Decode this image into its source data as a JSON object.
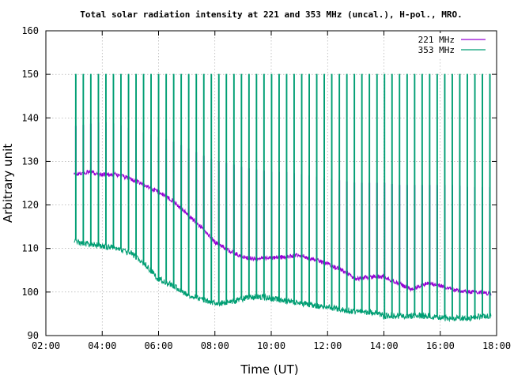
{
  "chart_data": {
    "type": "line",
    "title": "Total solar radiation intensity at 221 and 353 MHz (uncal.), H-pol., MRO.",
    "xlabel": "Time (UT)",
    "ylabel": "Arbitrary unit",
    "xlim": [
      2,
      18
    ],
    "ylim": [
      90,
      160
    ],
    "x_ticks": [
      2,
      4,
      6,
      8,
      10,
      12,
      14,
      16,
      18
    ],
    "x_tick_labels": [
      "02:00",
      "04:00",
      "06:00",
      "08:00",
      "10:00",
      "12:00",
      "14:00",
      "16:00",
      "18:00"
    ],
    "y_ticks": [
      90,
      100,
      110,
      120,
      130,
      140,
      150,
      160
    ],
    "y_tick_labels": [
      "90",
      "100",
      "110",
      "120",
      "130",
      "140",
      "150",
      "160"
    ],
    "grid": true,
    "legend_position": "top-right",
    "x_units": "hours UT",
    "series": [
      {
        "name": "221 MHz",
        "color": "#9400d3",
        "baseline_x": [
          3.0,
          3.5,
          4.0,
          4.5,
          5.0,
          5.5,
          6.0,
          6.5,
          7.0,
          7.5,
          8.0,
          8.5,
          9.0,
          9.5,
          10.0,
          10.5,
          11.0,
          11.5,
          12.0,
          12.5,
          13.0,
          13.5,
          14.0,
          14.5,
          15.0,
          15.5,
          16.0,
          16.5,
          17.0,
          17.5,
          17.8
        ],
        "baseline_y": [
          127,
          127.5,
          127,
          127,
          126,
          124.5,
          123,
          121,
          118,
          115,
          111.5,
          109.5,
          108,
          107.5,
          108,
          108,
          108.5,
          107.5,
          106.5,
          105,
          103,
          103.5,
          103.5,
          102,
          100.5,
          102,
          101.5,
          100.5,
          100,
          100,
          99.5
        ],
        "calibration_spike_top": [
          138,
          138.5,
          139,
          138.5,
          137.5,
          136.5,
          135.5,
          134.5,
          133,
          131.5,
          130,
          129.5,
          128.5,
          128,
          127.5,
          127.5,
          127,
          126.5,
          126,
          125.5,
          125,
          125,
          125,
          124.5,
          124.5,
          124.5,
          124.5,
          124.5,
          124,
          124,
          124
        ],
        "calibration_spike_count": 56,
        "calibration_spike_start": 3.05,
        "calibration_spike_end": 17.75,
        "noise": 0.5
      },
      {
        "name": "353 MHz",
        "color": "#009e73",
        "baseline_x": [
          3.0,
          3.5,
          4.0,
          4.5,
          5.0,
          5.5,
          6.0,
          6.5,
          7.0,
          7.5,
          8.0,
          8.5,
          9.0,
          9.5,
          10.0,
          10.5,
          11.0,
          11.5,
          12.0,
          12.5,
          13.0,
          13.5,
          14.0,
          14.5,
          15.0,
          15.5,
          16.0,
          16.5,
          17.0,
          17.5,
          17.8
        ],
        "baseline_y": [
          111.5,
          111,
          110.5,
          110,
          109,
          106.5,
          103,
          101.5,
          99.5,
          98.5,
          97.5,
          97.5,
          98.5,
          99,
          98.5,
          98,
          97.5,
          97,
          96.5,
          96,
          95.5,
          95.5,
          94.5,
          94.5,
          94.5,
          94.5,
          94,
          94,
          94,
          94.5,
          94.5
        ],
        "calibration_spike_top": 150,
        "calibration_spike_count": 56,
        "calibration_spike_start": 3.05,
        "calibration_spike_end": 17.75,
        "noise": 0.7
      }
    ]
  }
}
